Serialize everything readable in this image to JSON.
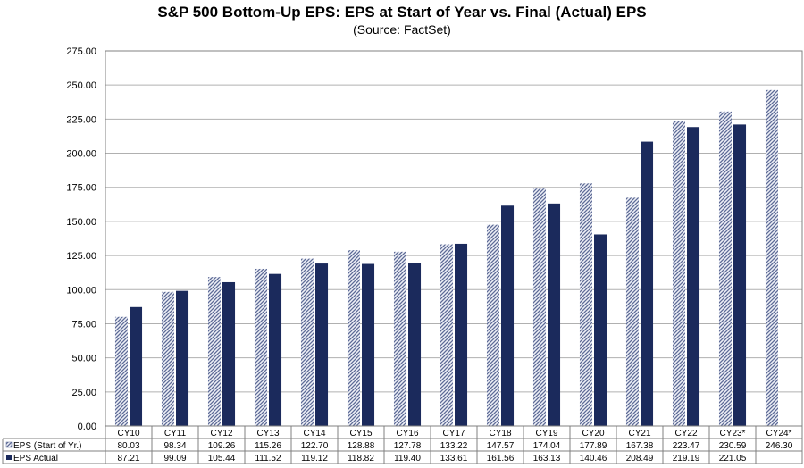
{
  "chart_data": {
    "type": "bar",
    "title": "S&P 500 Bottom-Up EPS: EPS at Start of Year vs. Final (Actual) EPS",
    "subtitle": "(Source: FactSet)",
    "categories": [
      "CY10",
      "CY11",
      "CY12",
      "CY13",
      "CY14",
      "CY15",
      "CY16",
      "CY17",
      "CY18",
      "CY19",
      "CY20",
      "CY21",
      "CY22",
      "CY23*",
      "CY24*"
    ],
    "series": [
      {
        "name": "EPS (Start of Yr.)",
        "color": "#9aa5c8",
        "pattern": "hatched",
        "values": [
          80.03,
          98.34,
          109.26,
          115.26,
          122.7,
          128.88,
          127.78,
          133.22,
          147.57,
          174.04,
          177.89,
          167.38,
          223.47,
          230.59,
          246.3
        ],
        "display": [
          "80.03",
          "98.34",
          "109.26",
          "115.26",
          "122.70",
          "128.88",
          "127.78",
          "133.22",
          "147.57",
          "174.04",
          "177.89",
          "167.38",
          "223.47",
          "230.59",
          "246.30"
        ]
      },
      {
        "name": "EPS Actual",
        "color": "#1b2a5c",
        "pattern": "solid",
        "values": [
          87.21,
          99.09,
          105.44,
          111.52,
          119.12,
          118.82,
          119.4,
          133.61,
          161.56,
          163.13,
          140.46,
          208.49,
          219.19,
          221.05,
          null
        ],
        "display": [
          "87.21",
          "99.09",
          "105.44",
          "111.52",
          "119.12",
          "118.82",
          "119.40",
          "133.61",
          "161.56",
          "163.13",
          "140.46",
          "208.49",
          "219.19",
          "221.05",
          ""
        ]
      }
    ],
    "ylim": [
      0,
      275
    ],
    "yticks": [
      "0.00",
      "25.00",
      "50.00",
      "75.00",
      "100.00",
      "125.00",
      "150.00",
      "175.00",
      "200.00",
      "225.00",
      "250.00",
      "275.00"
    ],
    "grid": true,
    "legend": "data-table"
  }
}
